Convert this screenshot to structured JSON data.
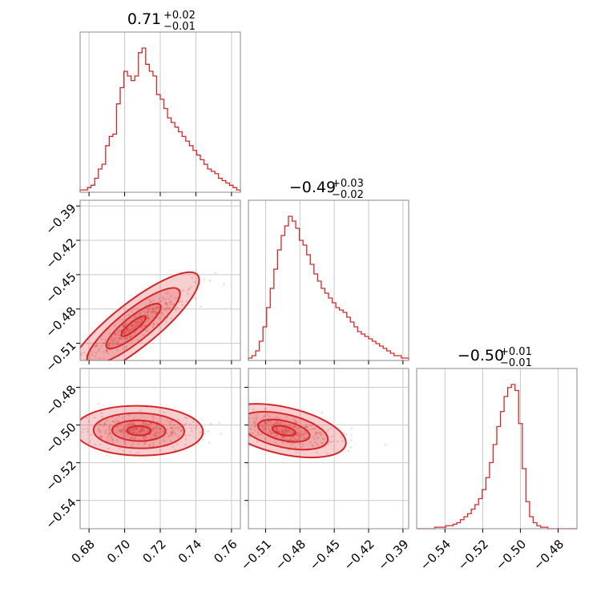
{
  "figure": {
    "accent_color": "#d62728"
  },
  "chart_data": {
    "type": "corner",
    "params": [
      {
        "title_value": "0.71",
        "title_plus": "+0.02",
        "title_minus": "−0.01",
        "range": [
          0.675,
          0.765
        ],
        "ticks": [
          0.68,
          0.7,
          0.72,
          0.74,
          0.76
        ],
        "tick_labels": [
          "0.68",
          "0.70",
          "0.72",
          "0.74",
          "0.76"
        ],
        "hist_counts": [
          1,
          1,
          2,
          3,
          6,
          10,
          12,
          20,
          24,
          25,
          38,
          45,
          52,
          50,
          48,
          50,
          60,
          62,
          55,
          52,
          50,
          42,
          40,
          36,
          32,
          30,
          28,
          26,
          24,
          22,
          20,
          18,
          16,
          14,
          12,
          10,
          9,
          8,
          6,
          5,
          4,
          3,
          2,
          1
        ],
        "hist_top": 62
      },
      {
        "title_value": "−0.49",
        "title_plus": "+0.03",
        "title_minus": "−0.02",
        "range": [
          -0.525,
          -0.385
        ],
        "ticks": [
          -0.51,
          -0.48,
          -0.45,
          -0.42,
          -0.39
        ],
        "tick_labels": [
          "−0.51",
          "−0.48",
          "−0.45",
          "−0.42",
          "−0.39"
        ],
        "hist_counts": [
          1,
          2,
          4,
          8,
          14,
          22,
          30,
          38,
          46,
          52,
          56,
          60,
          58,
          55,
          50,
          48,
          44,
          40,
          36,
          33,
          30,
          28,
          26,
          24,
          22,
          21,
          20,
          18,
          16,
          14,
          12,
          11,
          10,
          9,
          8,
          7,
          6,
          5,
          4,
          3,
          2,
          2,
          1,
          1
        ],
        "hist_top": 60
      },
      {
        "title_value": "−0.50",
        "title_plus": "+0.01",
        "title_minus": "−0.01",
        "range": [
          -0.555,
          -0.47
        ],
        "ticks": [
          -0.54,
          -0.52,
          -0.5,
          -0.48
        ],
        "tick_labels": [
          "−0.54",
          "−0.52",
          "−0.50",
          "−0.48"
        ],
        "hist_counts": [
          0,
          0,
          0,
          0,
          0,
          1,
          1,
          1,
          2,
          2,
          3,
          4,
          6,
          8,
          10,
          13,
          16,
          20,
          26,
          34,
          44,
          56,
          68,
          78,
          88,
          94,
          96,
          92,
          70,
          40,
          18,
          8,
          4,
          2,
          1,
          1,
          0,
          0,
          0,
          0,
          0,
          0,
          0,
          0
        ],
        "hist_top": 96
      }
    ],
    "pairs": [
      {
        "x_param": 0,
        "y_param": 1,
        "corr": 0.93,
        "center": [
          0.705,
          -0.495
        ],
        "spread": [
          0.012,
          0.016
        ]
      },
      {
        "x_param": 0,
        "y_param": 2,
        "corr": -0.05,
        "center": [
          0.708,
          -0.503
        ],
        "spread": [
          0.012,
          0.004
        ]
      },
      {
        "x_param": 1,
        "y_param": 2,
        "corr": -0.55,
        "center": [
          -0.494,
          -0.503
        ],
        "spread": [
          0.018,
          0.0045
        ]
      }
    ]
  }
}
